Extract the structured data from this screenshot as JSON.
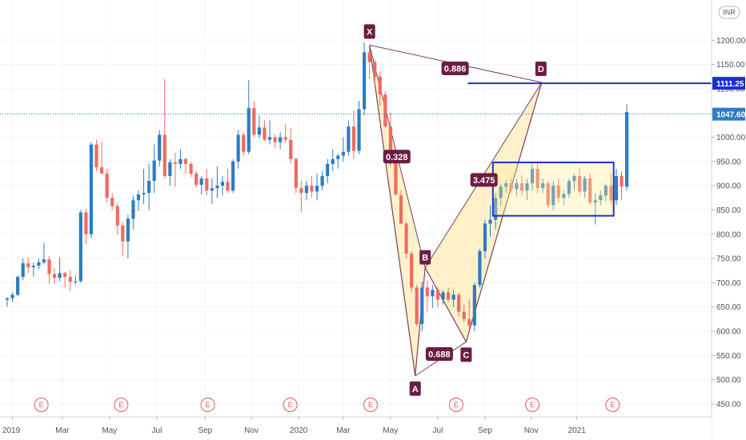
{
  "chart_data": {
    "type": "candlestick",
    "currency": "INR",
    "ylim": [
      435,
      1250
    ],
    "y_ticks": [
      "450.00",
      "500.00",
      "550.00",
      "600.00",
      "650.00",
      "700.00",
      "750.00",
      "800.00",
      "850.00",
      "900.00",
      "950.00",
      "1000.00",
      "1050.00",
      "1100.00",
      "1150.00",
      "1200.00"
    ],
    "x_ticks": [
      {
        "label": "2019",
        "week": 1
      },
      {
        "label": "Mar",
        "week": 10.5
      },
      {
        "label": "May",
        "week": 19.5
      },
      {
        "label": "Jul",
        "week": 28.5
      },
      {
        "label": "Sep",
        "week": 37.7
      },
      {
        "label": "Nov",
        "week": 46.5
      },
      {
        "label": "2020",
        "week": 55.5
      },
      {
        "label": "Mar",
        "week": 64
      },
      {
        "label": "May",
        "week": 73
      },
      {
        "label": "Jul",
        "week": 82
      },
      {
        "label": "Sep",
        "week": 91
      },
      {
        "label": "Nov",
        "week": 99.8
      },
      {
        "label": "2021",
        "week": 108.5
      }
    ],
    "candles": [
      [
        665,
        670,
        650,
        668
      ],
      [
        668,
        680,
        660,
        675
      ],
      [
        675,
        715,
        672,
        712
      ],
      [
        712,
        750,
        705,
        740
      ],
      [
        740,
        752,
        720,
        732
      ],
      [
        732,
        742,
        712,
        735
      ],
      [
        735,
        750,
        728,
        742
      ],
      [
        742,
        782,
        738,
        748
      ],
      [
        748,
        755,
        698,
        718
      ],
      [
        718,
        730,
        698,
        710
      ],
      [
        710,
        752,
        703,
        720
      ],
      [
        720,
        722,
        690,
        712
      ],
      [
        712,
        725,
        682,
        702
      ],
      [
        702,
        715,
        695,
        703
      ],
      [
        703,
        850,
        700,
        845
      ],
      [
        845,
        852,
        780,
        800
      ],
      [
        800,
        990,
        792,
        985
      ],
      [
        985,
        995,
        930,
        938
      ],
      [
        938,
        990,
        925,
        925
      ],
      [
        925,
        935,
        865,
        875
      ],
      [
        875,
        885,
        850,
        858
      ],
      [
        858,
        865,
        800,
        818
      ],
      [
        818,
        825,
        755,
        785
      ],
      [
        785,
        840,
        750,
        832
      ],
      [
        832,
        880,
        810,
        870
      ],
      [
        870,
        890,
        848,
        882
      ],
      [
        882,
        935,
        862,
        885
      ],
      [
        885,
        945,
        850,
        910
      ],
      [
        910,
        985,
        885,
        952
      ],
      [
        952,
        1015,
        940,
        1005
      ],
      [
        1005,
        1120,
        915,
        920
      ],
      [
        920,
        955,
        900,
        948
      ],
      [
        948,
        968,
        898,
        945
      ],
      [
        945,
        975,
        935,
        955
      ],
      [
        955,
        958,
        925,
        945
      ],
      [
        945,
        950,
        918,
        925
      ],
      [
        925,
        930,
        895,
        902
      ],
      [
        902,
        920,
        882,
        915
      ],
      [
        915,
        935,
        880,
        890
      ],
      [
        890,
        915,
        862,
        895
      ],
      [
        895,
        940,
        875,
        900
      ],
      [
        900,
        920,
        880,
        908
      ],
      [
        908,
        935,
        885,
        890
      ],
      [
        890,
        955,
        885,
        950
      ],
      [
        950,
        1015,
        935,
        1005
      ],
      [
        1005,
        1010,
        960,
        970
      ],
      [
        970,
        1118,
        965,
        1060
      ],
      [
        1060,
        1075,
        1000,
        1005
      ],
      [
        1005,
        1045,
        998,
        1020
      ],
      [
        1020,
        1035,
        992,
        995
      ],
      [
        995,
        1035,
        985,
        1000
      ],
      [
        1000,
        1005,
        978,
        990
      ],
      [
        990,
        1010,
        975,
        1000
      ],
      [
        1000,
        1028,
        988,
        995
      ],
      [
        995,
        1018,
        945,
        955
      ],
      [
        955,
        958,
        885,
        895
      ],
      [
        895,
        910,
        845,
        885
      ],
      [
        885,
        910,
        870,
        900
      ],
      [
        900,
        920,
        875,
        888
      ],
      [
        888,
        925,
        870,
        900
      ],
      [
        900,
        930,
        890,
        920
      ],
      [
        920,
        955,
        905,
        945
      ],
      [
        945,
        975,
        930,
        955
      ],
      [
        955,
        965,
        935,
        962
      ],
      [
        962,
        1000,
        950,
        970
      ],
      [
        970,
        1035,
        962,
        1022
      ],
      [
        1022,
        1055,
        955,
        972
      ],
      [
        972,
        1075,
        965,
        1058
      ],
      [
        1058,
        1195,
        1045,
        1175
      ],
      [
        1175,
        1185,
        1120,
        1155
      ],
      [
        1155,
        1160,
        1105,
        1125
      ],
      [
        1125,
        1135,
        1065,
        1088
      ],
      [
        1088,
        1095,
        1020,
        1022
      ],
      [
        1022,
        1050,
        940,
        950
      ],
      [
        950,
        958,
        880,
        882
      ],
      [
        880,
        890,
        820,
        822
      ],
      [
        822,
        825,
        750,
        760
      ],
      [
        760,
        765,
        680,
        690
      ],
      [
        690,
        695,
        610,
        615
      ],
      [
        615,
        702,
        600,
        690
      ],
      [
        690,
        705,
        640,
        672
      ],
      [
        672,
        695,
        648,
        685
      ],
      [
        685,
        690,
        650,
        665
      ],
      [
        665,
        685,
        655,
        680
      ],
      [
        680,
        690,
        660,
        665
      ],
      [
        665,
        685,
        650,
        675
      ],
      [
        675,
        680,
        630,
        640
      ],
      [
        640,
        655,
        618,
        625
      ],
      [
        625,
        665,
        605,
        612
      ],
      [
        612,
        700,
        600,
        695
      ],
      [
        695,
        770,
        690,
        765
      ],
      [
        765,
        830,
        750,
        822
      ],
      [
        822,
        860,
        795,
        830
      ],
      [
        830,
        885,
        810,
        875
      ],
      [
        875,
        905,
        858,
        898
      ],
      [
        898,
        912,
        885,
        905
      ],
      [
        905,
        915,
        885,
        893
      ],
      [
        893,
        915,
        878,
        905
      ],
      [
        905,
        922,
        880,
        890
      ],
      [
        890,
        915,
        870,
        905
      ],
      [
        905,
        945,
        890,
        935
      ],
      [
        935,
        948,
        885,
        895
      ],
      [
        895,
        915,
        885,
        905
      ],
      [
        905,
        910,
        855,
        860
      ],
      [
        860,
        910,
        850,
        900
      ],
      [
        900,
        915,
        865,
        875
      ],
      [
        875,
        890,
        860,
        883
      ],
      [
        883,
        915,
        875,
        910
      ],
      [
        910,
        925,
        890,
        920
      ],
      [
        920,
        935,
        880,
        888
      ],
      [
        888,
        920,
        875,
        915
      ],
      [
        915,
        925,
        860,
        865
      ],
      [
        865,
        885,
        820,
        870
      ],
      [
        870,
        890,
        860,
        880
      ],
      [
        880,
        905,
        868,
        900
      ],
      [
        900,
        925,
        862,
        870
      ],
      [
        870,
        935,
        860,
        920
      ],
      [
        920,
        930,
        870,
        898
      ],
      [
        898,
        1068,
        890,
        1052
      ]
    ],
    "harmonic_pattern": {
      "points": [
        {
          "name": "X",
          "week": 69,
          "price": 1190
        },
        {
          "name": "A",
          "week": 77.7,
          "price": 508
        },
        {
          "name": "B",
          "week": 79.6,
          "price": 731
        },
        {
          "name": "C",
          "week": 87.4,
          "price": 578
        },
        {
          "name": "D",
          "week": 101.8,
          "price": 1113
        }
      ],
      "ratios": [
        {
          "label": "0.886",
          "week": 85.3,
          "price": 1142
        },
        {
          "label": "0.328",
          "week": 74.2,
          "price": 960
        },
        {
          "label": "3.475",
          "week": 90.8,
          "price": 912
        },
        {
          "label": "0.688",
          "week": 82.3,
          "price": 553
        }
      ]
    },
    "range_box": {
      "week_start": 92.5,
      "week_end": 115.5,
      "price_low": 838,
      "price_high": 948
    },
    "resistance_line": {
      "price": 1111.25,
      "label": "1111.25",
      "week_start": 87.7
    },
    "last_price": {
      "price": 1047.6,
      "label": "1047.60"
    },
    "earnings_marker": "E",
    "earnings_weeks": [
      6.5,
      21.7,
      38.2,
      53.9,
      69.2,
      85.5,
      100,
      115.3
    ]
  }
}
